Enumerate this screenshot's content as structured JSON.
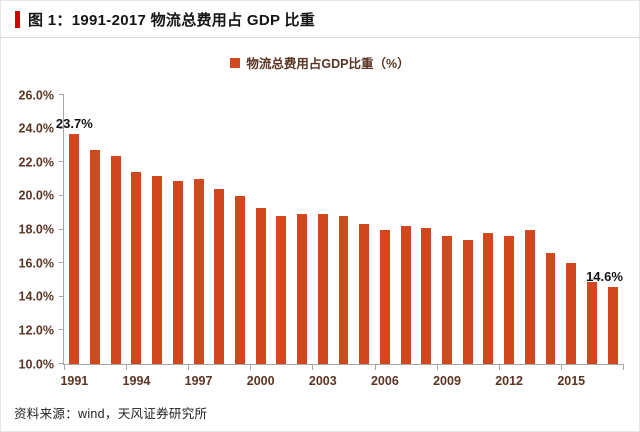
{
  "header": {
    "figure_label": "图 1：1991-2017 物流总费用占 GDP 比重"
  },
  "chart_data": {
    "type": "bar",
    "title": "图 1：1991-2017 物流总费用占 GDP 比重",
    "legend": "物流总费用占GDP比重（%）",
    "bar_color": "#d2481e",
    "axis_label_color": "#5b3423",
    "ylabel": "",
    "xlabel": "",
    "ylim": [
      10,
      26
    ],
    "ytick_values": [
      26,
      24,
      22,
      20,
      18,
      16,
      14,
      12,
      10
    ],
    "ytick_labels": [
      "26.0%",
      "24.0%",
      "22.0%",
      "20.0%",
      "18.0%",
      "16.0%",
      "14.0%",
      "12.0%",
      "10.0%"
    ],
    "categories": [
      1991,
      1992,
      1993,
      1994,
      1995,
      1996,
      1997,
      1998,
      1999,
      2000,
      2001,
      2002,
      2003,
      2004,
      2005,
      2006,
      2007,
      2008,
      2009,
      2010,
      2011,
      2012,
      2013,
      2014,
      2015,
      2016,
      2017
    ],
    "values": [
      23.7,
      22.7,
      22.4,
      21.4,
      21.2,
      20.9,
      21.0,
      20.4,
      20.0,
      19.3,
      18.8,
      18.9,
      18.9,
      18.8,
      18.3,
      18.0,
      18.2,
      18.1,
      17.6,
      17.4,
      17.8,
      17.6,
      18.0,
      16.6,
      16.0,
      14.9,
      14.6
    ],
    "xtick_labels": [
      "1991",
      "1994",
      "1997",
      "2000",
      "2003",
      "2006",
      "2009",
      "2012",
      "2015"
    ],
    "xtick_indices": [
      0,
      3,
      6,
      9,
      12,
      15,
      18,
      21,
      24
    ],
    "xtick_boundary_step": 3,
    "grid": false,
    "legend_position": "top-center",
    "annotations": [
      {
        "index": 0,
        "text": "23.7%",
        "align": "center"
      },
      {
        "index": 26,
        "text": "14.6%",
        "align": "left"
      }
    ]
  },
  "footer": {
    "source": "资料来源：wind，天风证券研究所"
  }
}
